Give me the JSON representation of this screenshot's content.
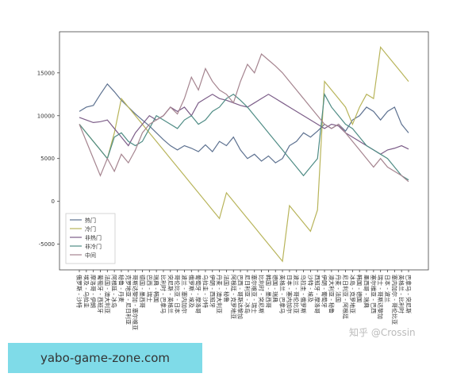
{
  "chart_data": {
    "type": "line",
    "categories": [
      "俄罗斯 - 沙特",
      "埃及 - 乌拉圭",
      "摩洛哥 - 伊朗",
      "葡萄牙 - 西班牙",
      "法国 - 澳大利亚",
      "阿根廷 - 冰岛",
      "秘鲁 - 丹麦",
      "克罗地亚 - 尼日利亚",
      "哥斯达黎加 - 塞尔维亚",
      "德国 - 墨西哥",
      "巴西 - 瑞士",
      "瑞典 - 韩国",
      "比利时 - 巴拿马",
      "突尼斯 - 英格兰",
      "哥伦比亚 - 日本",
      "波兰 - 塞内加尔",
      "俄罗斯 - 埃及",
      "葡萄牙 - 摩洛哥",
      "乌拉圭 - 沙特",
      "伊朗 - 西班牙",
      "丹麦 - 澳大利亚",
      "法国 - 秘鲁",
      "阿根廷 - 克罗地亚",
      "巴西 - 哥斯达黎加",
      "尼日利亚 - 冰岛",
      "塞尔维亚 - 瑞士",
      "比利时 - 突尼斯",
      "韩国 - 墨西哥",
      "德国 - 瑞典",
      "英格兰 - 巴拿马",
      "日本 - 塞内加尔",
      "波兰 - 哥伦比亚",
      "乌拉圭 - 俄罗斯",
      "沙特 - 埃及",
      "西班牙 - 摩洛哥",
      "伊朗 - 葡萄牙",
      "澳大利亚 - 秘鲁",
      "丹麦 - 法国",
      "尼日利亚 - 阿根廷",
      "冰岛 - 克罗地亚",
      "韩国 - 德国",
      "墨西哥 - 瑞典",
      "塞尔维亚 - 巴西",
      "瑞士 - 哥斯达黎加",
      "日本 - 波兰",
      "塞内加尔 - 哥伦比亚",
      "英格兰 - 比利时",
      "巴拿马 - 突尼斯"
    ],
    "series": [
      {
        "name": "热门",
        "color": "#5d7190",
        "values": [
          10500,
          11000,
          11200,
          12500,
          13700,
          12800,
          11800,
          11000,
          10200,
          9500,
          8800,
          8000,
          7200,
          6500,
          6000,
          6500,
          6200,
          5800,
          6600,
          5800,
          7000,
          6500,
          7500,
          6000,
          5000,
          5500,
          4700,
          5300,
          4500,
          5000,
          6500,
          7000,
          8000,
          7500,
          8200,
          9000,
          8500,
          9000,
          8200,
          9500,
          10000,
          11000,
          10500,
          9500,
          10500,
          11000,
          9000,
          8000
        ]
      },
      {
        "name": "冷门",
        "color": "#b8b45a",
        "values": [
          9000,
          8000,
          7000,
          6000,
          5000,
          8000,
          12000,
          11000,
          10000,
          9000,
          8000,
          7000,
          6000,
          5000,
          4000,
          3000,
          2000,
          1000,
          0,
          -1000,
          -2000,
          1000,
          0,
          -1000,
          -2000,
          -3000,
          -4000,
          -5000,
          -6000,
          -7000,
          -500,
          -1500,
          -2500,
          -3500,
          -1000,
          14000,
          13000,
          12000,
          11000,
          9000,
          11000,
          12500,
          12000,
          18000,
          17000,
          16000,
          15000,
          14000
        ]
      },
      {
        "name": "非热门",
        "color": "#7c5d88",
        "values": [
          9800,
          9500,
          9200,
          9300,
          9500,
          8500,
          7500,
          6500,
          8000,
          9000,
          10000,
          9500,
          10000,
          11000,
          10500,
          11000,
          10000,
          11500,
          12000,
          12500,
          12000,
          11800,
          11500,
          11200,
          11000,
          11500,
          12000,
          12500,
          12000,
          11500,
          11000,
          10500,
          10000,
          9500,
          9000,
          8500,
          9000,
          8800,
          8000,
          7500,
          7000,
          6500,
          6000,
          5500,
          6000,
          6200,
          6500,
          6100
        ]
      },
      {
        "name": "非冷门",
        "color": "#4f8c85",
        "values": [
          9000,
          8000,
          7000,
          6000,
          5000,
          7500,
          8000,
          7000,
          6500,
          7000,
          8500,
          10000,
          9500,
          9000,
          8500,
          9500,
          10000,
          9000,
          9500,
          10500,
          11000,
          12000,
          12500,
          11800,
          11000,
          10000,
          9000,
          8000,
          7000,
          6000,
          5000,
          4000,
          3000,
          4000,
          5000,
          12500,
          11000,
          10000,
          9000,
          8500,
          7500,
          6500,
          6000,
          5500,
          5000,
          4000,
          3000,
          2500
        ]
      },
      {
        "name": "中间",
        "color": "#a5848f",
        "values": [
          9000,
          7000,
          5000,
          3000,
          5000,
          3500,
          5500,
          4500,
          6000,
          8000,
          9000,
          9500,
          10000,
          11000,
          10200,
          12000,
          14500,
          13000,
          15500,
          14000,
          13000,
          12500,
          11500,
          14000,
          16000,
          15000,
          17200,
          16500,
          15800,
          15000,
          14000,
          13000,
          12000,
          11000,
          10000,
          9000,
          8500,
          9000,
          8000,
          7000,
          6000,
          5000,
          4000,
          5000,
          4000,
          3500,
          3000,
          2300
        ]
      }
    ],
    "ylim": [
      -8000,
      19800
    ],
    "yticks": [
      -5000,
      0,
      5000,
      10000,
      15000
    ],
    "grid": false,
    "legend": "lower left"
  },
  "watermark": "知乎 @Crossin",
  "badge": "yabo-game-zone.com"
}
